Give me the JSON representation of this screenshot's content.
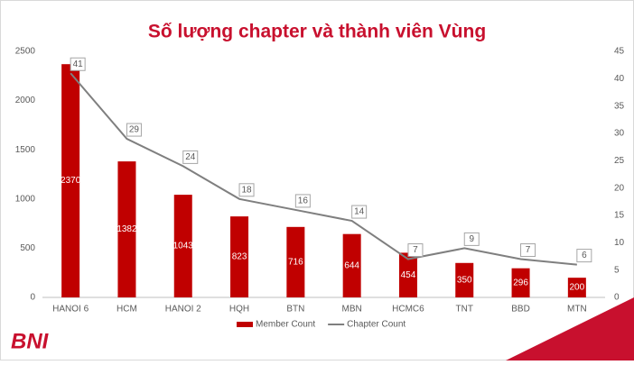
{
  "chart_data": {
    "type": "bar",
    "title": "Số lượng chapter và thành viên Vùng",
    "categories": [
      "HANOI 6",
      "HCM",
      "HANOI 2",
      "HQH",
      "BTN",
      "MBN",
      "HCMC6",
      "TNT",
      "BBD",
      "MTN"
    ],
    "series": [
      {
        "name": "Member Count",
        "type": "bar",
        "color": "#c00000",
        "values": [
          2370,
          1382,
          1043,
          823,
          716,
          644,
          454,
          350,
          296,
          200
        ]
      },
      {
        "name": "Chapter Count",
        "type": "line",
        "axis": "y2",
        "color": "#7f7f7f",
        "values": [
          41,
          29,
          24,
          18,
          16,
          14,
          7,
          9,
          7,
          6
        ]
      }
    ],
    "ylim": [
      0,
      2500
    ],
    "yticks": [
      0,
      500,
      1000,
      1500,
      2000,
      2500
    ],
    "y2lim": [
      0,
      45
    ],
    "y2ticks": [
      0,
      5,
      10,
      15,
      20,
      25,
      30,
      35,
      40,
      45
    ],
    "legend": "bottom"
  },
  "logo": "BNI"
}
